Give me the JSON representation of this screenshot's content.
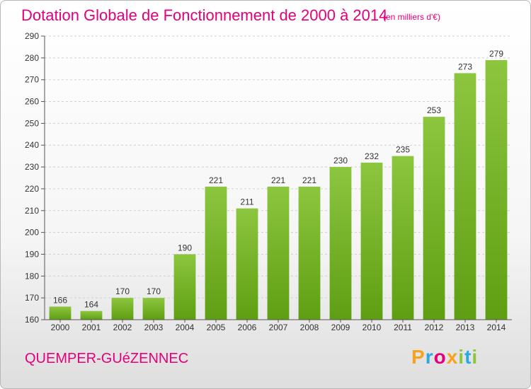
{
  "chart_data": {
    "type": "bar",
    "title": "Dotation Globale de Fonctionnement de 2000 à 2014",
    "subtitle": "(en milliers d'€)",
    "categories": [
      "2000",
      "2001",
      "2002",
      "2003",
      "2004",
      "2005",
      "2006",
      "2007",
      "2008",
      "2009",
      "2010",
      "2011",
      "2012",
      "2013",
      "2014"
    ],
    "values": [
      166,
      164,
      170,
      170,
      190,
      221,
      211,
      221,
      221,
      230,
      232,
      235,
      253,
      273,
      279
    ],
    "ylim": [
      160,
      290
    ],
    "yticks": [
      160,
      170,
      180,
      190,
      200,
      210,
      220,
      230,
      240,
      250,
      260,
      270,
      280,
      290
    ],
    "grid": true,
    "bar_color_top": "#8cc63f",
    "bar_color_bottom": "#5f9e12"
  },
  "commune": "QUEMPER-GUéZENNEC",
  "logo": {
    "letters": [
      "P",
      "r",
      "o",
      "x",
      "i",
      "t",
      "i"
    ],
    "colors": [
      "#f7a21b",
      "#2aa8e0",
      "#e3007a",
      "#f7a21b",
      "#8cc63f",
      "#2aa8e0",
      "#8cc63f"
    ]
  }
}
